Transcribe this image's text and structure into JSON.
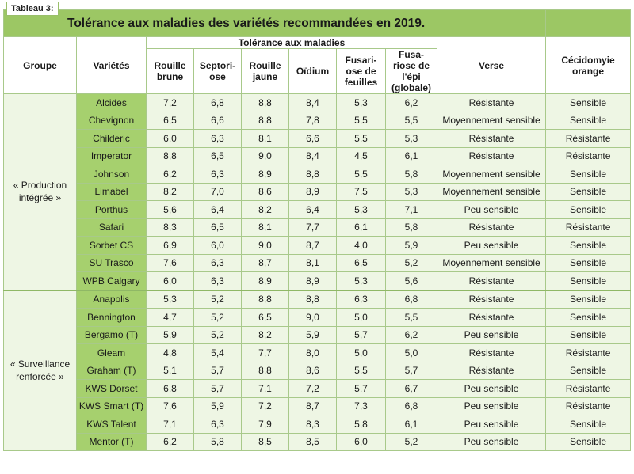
{
  "badge": "Tableau 3:",
  "title": "Tolérance aux maladies des variétés recommandées en 2019.",
  "headers": {
    "groupe": "Groupe",
    "varietes": "Variétés",
    "tolerance": "Tolérance aux maladies",
    "rouille_brune": "Rouille brune",
    "septoriose": "Septori- ose",
    "rouille_jaune": "Rouille jaune",
    "oidium": "Oïdium",
    "fusariose_feuilles": "Fusari- ose de feuilles",
    "fusariose_epi": "Fusa- riose de l'épi (globale)",
    "verse": "Verse",
    "cecidomyie": "Cécidomyie orange"
  },
  "groups": [
    {
      "name": "« Production intégrée »",
      "rows": [
        {
          "variete": "Alcides",
          "rb": "7,2",
          "sep": "6,8",
          "rj": "8,8",
          "oid": "8,4",
          "ff": "5,3",
          "fe": "6,2",
          "verse": "Résistante",
          "cec": "Sensible"
        },
        {
          "variete": "Chevignon",
          "rb": "6,5",
          "sep": "6,6",
          "rj": "8,8",
          "oid": "7,8",
          "ff": "5,5",
          "fe": "5,5",
          "verse": "Moyennement sensible",
          "cec": "Sensible"
        },
        {
          "variete": "Childeric",
          "rb": "6,0",
          "sep": "6,3",
          "rj": "8,1",
          "oid": "6,6",
          "ff": "5,5",
          "fe": "5,3",
          "verse": "Résistante",
          "cec": "Résistante"
        },
        {
          "variete": "Imperator",
          "rb": "8,8",
          "sep": "6,5",
          "rj": "9,0",
          "oid": "8,4",
          "ff": "4,5",
          "fe": "6,1",
          "verse": "Résistante",
          "cec": "Résistante"
        },
        {
          "variete": "Johnson",
          "rb": "6,2",
          "sep": "6,3",
          "rj": "8,9",
          "oid": "8,8",
          "ff": "5,5",
          "fe": "5,8",
          "verse": "Moyennement sensible",
          "cec": "Sensible"
        },
        {
          "variete": "Limabel",
          "rb": "8,2",
          "sep": "7,0",
          "rj": "8,6",
          "oid": "8,9",
          "ff": "7,5",
          "fe": "5,3",
          "verse": "Moyennement sensible",
          "cec": "Sensible"
        },
        {
          "variete": "Porthus",
          "rb": "5,6",
          "sep": "6,4",
          "rj": "8,2",
          "oid": "6,4",
          "ff": "5,3",
          "fe": "7,1",
          "verse": "Peu sensible",
          "cec": "Sensible"
        },
        {
          "variete": "Safari",
          "rb": "8,3",
          "sep": "6,5",
          "rj": "8,1",
          "oid": "7,7",
          "ff": "6,1",
          "fe": "5,8",
          "verse": "Résistante",
          "cec": "Résistante"
        },
        {
          "variete": "Sorbet CS",
          "rb": "6,9",
          "sep": "6,0",
          "rj": "9,0",
          "oid": "8,7",
          "ff": "4,0",
          "fe": "5,9",
          "verse": "Peu sensible",
          "cec": "Sensible"
        },
        {
          "variete": "SU Trasco",
          "rb": "7,6",
          "sep": "6,3",
          "rj": "8,7",
          "oid": "8,1",
          "ff": "6,5",
          "fe": "5,2",
          "verse": "Moyennement sensible",
          "cec": "Sensible"
        },
        {
          "variete": "WPB Calgary",
          "rb": "6,0",
          "sep": "6,3",
          "rj": "8,9",
          "oid": "8,9",
          "ff": "5,3",
          "fe": "5,6",
          "verse": "Résistante",
          "cec": "Sensible"
        }
      ]
    },
    {
      "name": "« Surveillance renforcée »",
      "rows": [
        {
          "variete": "Anapolis",
          "rb": "5,3",
          "sep": "5,2",
          "rj": "8,8",
          "oid": "8,8",
          "ff": "6,3",
          "fe": "6,8",
          "verse": "Résistante",
          "cec": "Sensible"
        },
        {
          "variete": "Bennington",
          "rb": "4,7",
          "sep": "5,2",
          "rj": "6,5",
          "oid": "9,0",
          "ff": "5,0",
          "fe": "5,5",
          "verse": "Résistante",
          "cec": "Sensible"
        },
        {
          "variete": "Bergamo (T)",
          "rb": "5,9",
          "sep": "5,2",
          "rj": "8,2",
          "oid": "5,9",
          "ff": "5,7",
          "fe": "6,2",
          "verse": "Peu sensible",
          "cec": "Sensible"
        },
        {
          "variete": "Gleam",
          "rb": "4,8",
          "sep": "5,4",
          "rj": "7,7",
          "oid": "8,0",
          "ff": "5,0",
          "fe": "5,0",
          "verse": "Résistante",
          "cec": "Résistante"
        },
        {
          "variete": "Graham (T)",
          "rb": "5,1",
          "sep": "5,7",
          "rj": "8,8",
          "oid": "8,6",
          "ff": "5,5",
          "fe": "5,7",
          "verse": "Résistante",
          "cec": "Sensible"
        },
        {
          "variete": "KWS Dorset",
          "rb": "6,8",
          "sep": "5,7",
          "rj": "7,1",
          "oid": "7,2",
          "ff": "5,7",
          "fe": "6,7",
          "verse": "Peu sensible",
          "cec": "Résistante"
        },
        {
          "variete": "KWS Smart (T)",
          "rb": "7,6",
          "sep": "5,9",
          "rj": "7,2",
          "oid": "8,7",
          "ff": "7,3",
          "fe": "6,8",
          "verse": "Peu sensible",
          "cec": "Résistante"
        },
        {
          "variete": "KWS Talent",
          "rb": "7,1",
          "sep": "6,3",
          "rj": "7,9",
          "oid": "8,3",
          "ff": "5,8",
          "fe": "6,1",
          "verse": "Peu sensible",
          "cec": "Sensible"
        },
        {
          "variete": "Mentor (T)",
          "rb": "6,2",
          "sep": "5,8",
          "rj": "8,5",
          "oid": "8,5",
          "ff": "6,0",
          "fe": "5,2",
          "verse": "Peu sensible",
          "cec": "Sensible"
        }
      ]
    }
  ]
}
